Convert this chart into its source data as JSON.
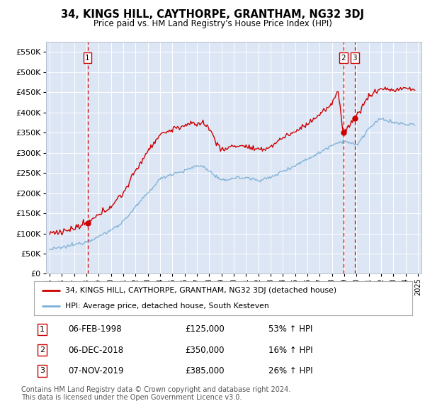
{
  "title": "34, KINGS HILL, CAYTHORPE, GRANTHAM, NG32 3DJ",
  "subtitle": "Price paid vs. HM Land Registry's House Price Index (HPI)",
  "legend_line1": "34, KINGS HILL, CAYTHORPE, GRANTHAM, NG32 3DJ (detached house)",
  "legend_line2": "HPI: Average price, detached house, South Kesteven",
  "transactions": [
    {
      "num": 1,
      "date_str": "06-FEB-1998",
      "price": 125000,
      "change": "53% ↑ HPI",
      "x": 1998.09
    },
    {
      "num": 2,
      "date_str": "06-DEC-2018",
      "price": 350000,
      "change": "16% ↑ HPI",
      "x": 2018.92
    },
    {
      "num": 3,
      "date_str": "07-NOV-2019",
      "price": 385000,
      "change": "26% ↑ HPI",
      "x": 2019.85
    }
  ],
  "footnote1": "Contains HM Land Registry data © Crown copyright and database right 2024.",
  "footnote2": "This data is licensed under the Open Government Licence v3.0.",
  "plot_bg_color": "#dce6f5",
  "red_color": "#cc0000",
  "blue_color": "#7bafd4",
  "ylim": [
    0,
    575000
  ],
  "xlim_start": 1994.7,
  "xlim_end": 2025.3,
  "hpi_anchors_x": [
    1995.0,
    1996.0,
    1997.0,
    1998.0,
    1999.0,
    2000.0,
    2001.0,
    2002.0,
    2003.0,
    2004.0,
    2005.0,
    2006.0,
    2007.0,
    2007.6,
    2008.0,
    2009.0,
    2010.0,
    2011.0,
    2012.0,
    2013.0,
    2014.0,
    2015.0,
    2016.0,
    2017.0,
    2018.0,
    2019.0,
    2020.0,
    2021.0,
    2022.0,
    2023.0,
    2024.0,
    2024.8
  ],
  "hpi_anchors_y": [
    60000,
    65000,
    72000,
    80000,
    92000,
    108000,
    130000,
    165000,
    200000,
    235000,
    248000,
    255000,
    268000,
    265000,
    255000,
    230000,
    238000,
    238000,
    232000,
    238000,
    255000,
    268000,
    285000,
    300000,
    320000,
    330000,
    318000,
    360000,
    385000,
    375000,
    370000,
    370000
  ],
  "prop_anchors_x": [
    1995.0,
    1996.0,
    1997.0,
    1998.09,
    1999.0,
    2000.0,
    2001.0,
    2002.0,
    2003.0,
    2004.0,
    2005.0,
    2006.0,
    2007.0,
    2007.5,
    2008.0,
    2009.0,
    2010.0,
    2011.0,
    2012.0,
    2013.0,
    2014.0,
    2015.0,
    2016.0,
    2017.0,
    2018.0,
    2018.5,
    2018.92,
    2019.0,
    2019.85,
    2020.0,
    2021.0,
    2022.0,
    2023.0,
    2024.0,
    2024.8
  ],
  "prop_anchors_y": [
    100000,
    105000,
    112000,
    125000,
    145000,
    168000,
    200000,
    255000,
    305000,
    345000,
    358000,
    368000,
    372000,
    375000,
    360000,
    305000,
    318000,
    316000,
    305000,
    315000,
    338000,
    352000,
    372000,
    395000,
    420000,
    455000,
    350000,
    352000,
    385000,
    392000,
    440000,
    460000,
    455000,
    460000,
    455000
  ]
}
